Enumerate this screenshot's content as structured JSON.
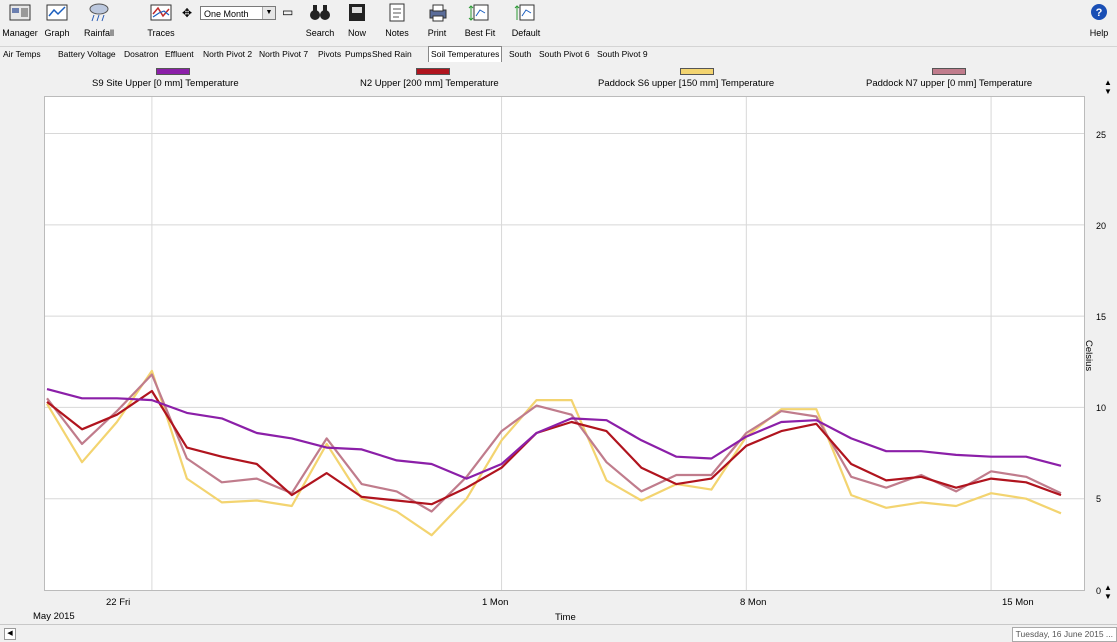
{
  "toolbar": {
    "manager": "Manager",
    "graph": "Graph",
    "rainfall": "Rainfall",
    "traces": "Traces",
    "period": "One Month",
    "search": "Search",
    "now": "Now",
    "notes": "Notes",
    "print": "Print",
    "best_fit": "Best Fit",
    "default": "Default",
    "help": "Help"
  },
  "tabs": [
    "Air Temps",
    "Battery Voltage",
    "Dosatron",
    "Effluent",
    "North Pivot 2",
    "North Pivot 7",
    "Pivots",
    "Pumps",
    "Shed Rain",
    "Soil Temperatures",
    "South",
    "South Pivot 6",
    "South Pivot 9"
  ],
  "active_tab": "Soil Temperatures",
  "legend": [
    {
      "label": "S9 Site Upper  [0 mm] Temperature",
      "color": "#8b1fa8"
    },
    {
      "label": "N2 Upper  [200 mm] Temperature",
      "color": "#b0141e"
    },
    {
      "label": "Paddock S6 upper  [150 mm] Temperature",
      "color": "#f3d470"
    },
    {
      "label": "Paddock N7 upper  [0 mm] Temperature",
      "color": "#c07c8c"
    }
  ],
  "axis": {
    "xlabel": "Time",
    "ylabel": "Celsius",
    "month_label": "May 2015",
    "yticks": [
      "0",
      "5",
      "10",
      "15",
      "20",
      "25"
    ],
    "xticks": [
      "22 Fri",
      "1 Mon",
      "8 Mon",
      "15 Mon"
    ]
  },
  "status": {
    "date": "Tuesday, 16 June 2015 ..."
  },
  "chart_data": {
    "type": "line",
    "xlabel": "Time",
    "ylabel": "Celsius",
    "ylim": [
      0,
      27
    ],
    "xlim_days_label": "May 2015",
    "series": [
      {
        "name": "S9 Site Upper  [0 mm] Temperature",
        "x": [
          19,
          20,
          21,
          22,
          23,
          24,
          25,
          26,
          27,
          28,
          29,
          30,
          31,
          32,
          33,
          34,
          35,
          36,
          37,
          38,
          39,
          40,
          41,
          42,
          43,
          44,
          45,
          46,
          47,
          48
        ],
        "values": [
          11.0,
          10.5,
          10.5,
          10.4,
          9.7,
          9.4,
          8.6,
          8.3,
          7.8,
          7.7,
          7.1,
          6.9,
          6.1,
          6.9,
          8.6,
          9.4,
          9.3,
          8.2,
          7.3,
          7.2,
          8.4,
          9.2,
          9.3,
          8.3,
          7.6,
          7.6,
          7.4,
          7.3,
          7.3,
          6.8
        ]
      },
      {
        "name": "N2 Upper  [200 mm] Temperature",
        "x": [
          19,
          20,
          21,
          22,
          23,
          24,
          25,
          26,
          27,
          28,
          29,
          30,
          31,
          32,
          33,
          34,
          35,
          36,
          37,
          38,
          39,
          40,
          41,
          42,
          43,
          44,
          45,
          46,
          47,
          48
        ],
        "values": [
          10.3,
          8.8,
          9.6,
          10.9,
          7.8,
          7.3,
          6.9,
          5.2,
          6.4,
          5.1,
          4.9,
          4.7,
          5.6,
          6.7,
          8.6,
          9.2,
          8.7,
          6.7,
          5.8,
          6.1,
          7.9,
          8.7,
          9.1,
          6.9,
          6.0,
          6.2,
          5.6,
          6.1,
          5.9,
          5.2
        ]
      },
      {
        "name": "Paddock S6 upper  [150 mm] Temperature",
        "x": [
          19,
          20,
          21,
          22,
          23,
          24,
          25,
          26,
          27,
          28,
          29,
          30,
          31,
          32,
          33,
          34,
          35,
          36,
          37,
          38,
          39,
          40,
          41,
          42,
          43,
          44,
          45,
          46,
          47,
          48
        ],
        "values": [
          10.2,
          7.0,
          9.2,
          12.0,
          6.1,
          4.8,
          4.9,
          4.6,
          8.0,
          5.0,
          4.3,
          3.0,
          5.0,
          8.2,
          10.4,
          10.4,
          6.0,
          4.9,
          5.8,
          5.5,
          8.4,
          9.9,
          9.9,
          5.2,
          4.5,
          4.8,
          4.6,
          5.3,
          5.0,
          4.2
        ]
      },
      {
        "name": "Paddock N7 upper  [0 mm] Temperature",
        "x": [
          19,
          20,
          21,
          22,
          23,
          24,
          25,
          26,
          27,
          28,
          29,
          30,
          31,
          32,
          33,
          34,
          35,
          36,
          37,
          38,
          39,
          40,
          41,
          42,
          43,
          44,
          45,
          46,
          47,
          48
        ],
        "values": [
          10.5,
          8.0,
          9.8,
          11.8,
          7.2,
          5.9,
          6.1,
          5.3,
          8.3,
          5.8,
          5.4,
          4.3,
          6.2,
          8.7,
          10.1,
          9.6,
          7.0,
          5.4,
          6.3,
          6.3,
          8.6,
          9.8,
          9.5,
          6.2,
          5.6,
          6.3,
          5.4,
          6.5,
          6.2,
          5.3
        ]
      }
    ]
  }
}
